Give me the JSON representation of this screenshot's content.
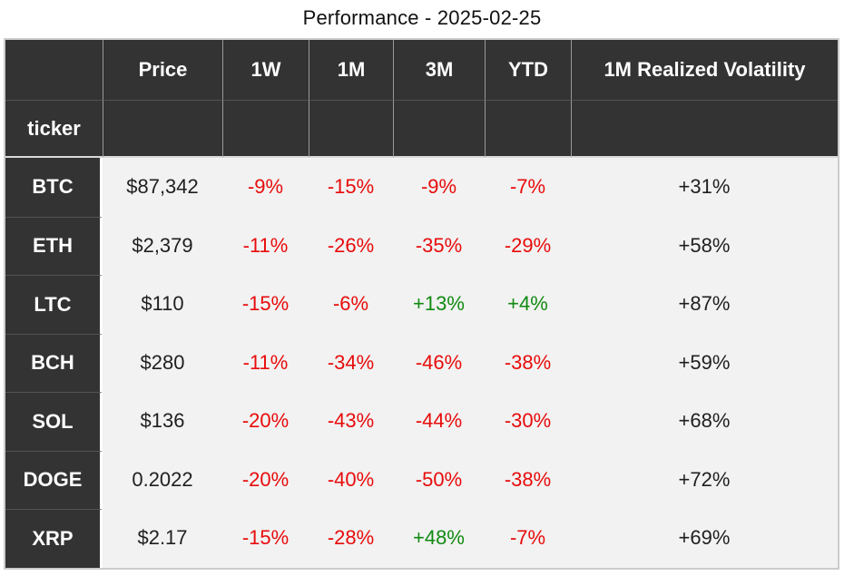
{
  "title": "Performance - 2025-02-25",
  "chart_data": {
    "type": "table",
    "title": "Performance - 2025-02-25",
    "index_label": "ticker",
    "columns": [
      {
        "label": "Price",
        "signed": false
      },
      {
        "label": "1W",
        "signed": true
      },
      {
        "label": "1M",
        "signed": true
      },
      {
        "label": "3M",
        "signed": true
      },
      {
        "label": "YTD",
        "signed": true
      },
      {
        "label": "1M Realized Volatility",
        "signed": false
      }
    ],
    "rows": [
      {
        "ticker": "BTC",
        "values": [
          "$87,342",
          "-9%",
          "-15%",
          "-9%",
          "-7%",
          "+31%"
        ]
      },
      {
        "ticker": "ETH",
        "values": [
          "$2,379",
          "-11%",
          "-26%",
          "-35%",
          "-29%",
          "+58%"
        ]
      },
      {
        "ticker": "LTC",
        "values": [
          "$110",
          "-15%",
          "-6%",
          "+13%",
          "+4%",
          "+87%"
        ]
      },
      {
        "ticker": "BCH",
        "values": [
          "$280",
          "-11%",
          "-34%",
          "-46%",
          "-38%",
          "+59%"
        ]
      },
      {
        "ticker": "SOL",
        "values": [
          "$136",
          "-20%",
          "-43%",
          "-44%",
          "-30%",
          "+68%"
        ]
      },
      {
        "ticker": "DOGE",
        "values": [
          "0.2022",
          "-20%",
          "-40%",
          "-50%",
          "-38%",
          "+72%"
        ]
      },
      {
        "ticker": "XRP",
        "values": [
          "$2.17",
          "-15%",
          "-28%",
          "+48%",
          "-7%",
          "+69%"
        ]
      }
    ]
  },
  "colors": {
    "negative": "#e80b0b",
    "positive": "#108a10",
    "neutral_text": "#1f1f1f",
    "header_background": "#333333",
    "body_background": "#f2f2f2",
    "page_background": "#ffffff",
    "header_separator": "#d9d9d9"
  }
}
